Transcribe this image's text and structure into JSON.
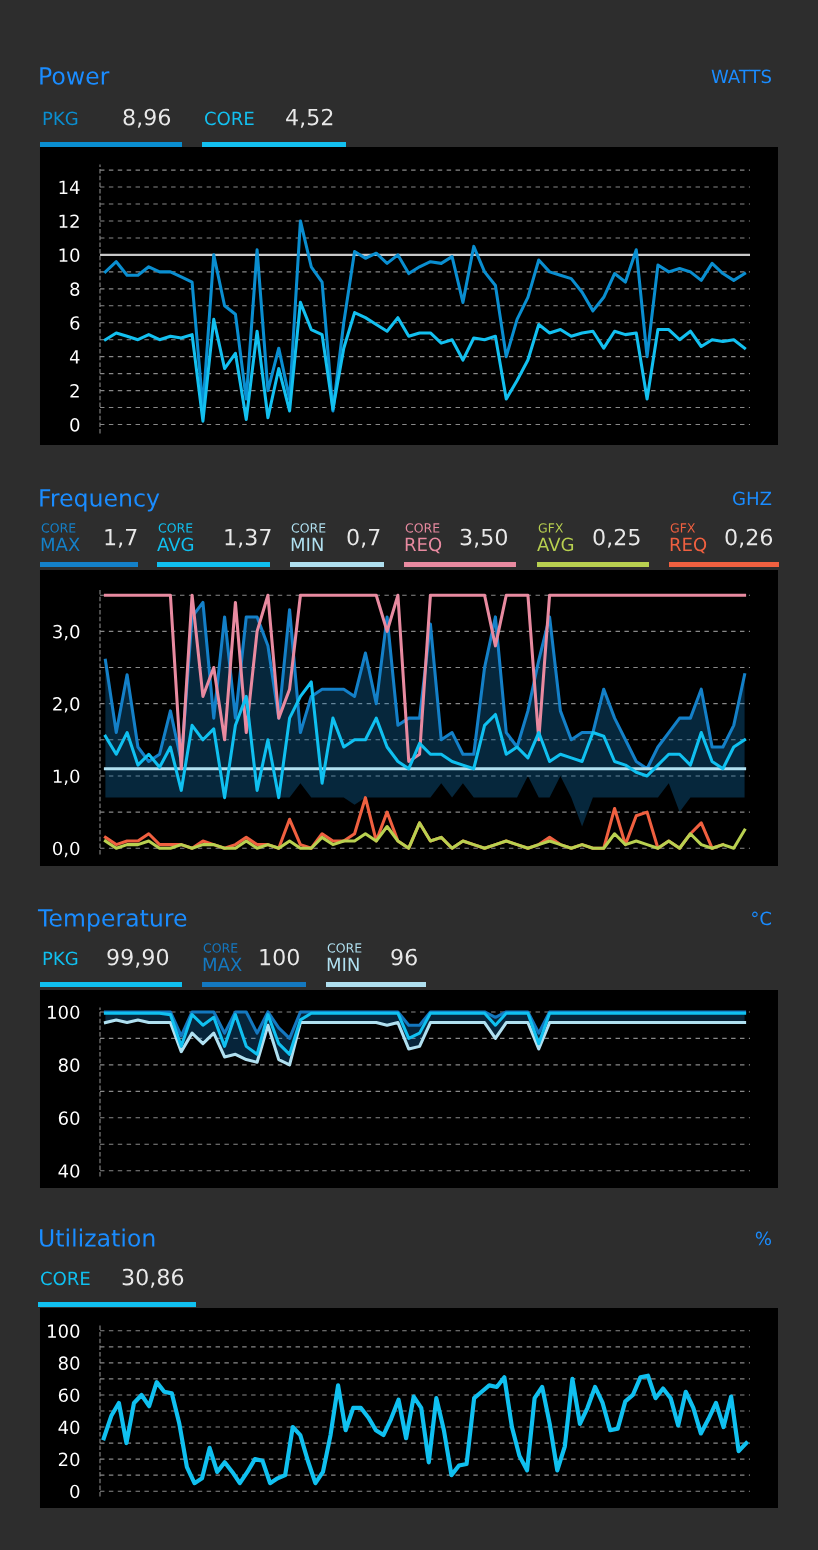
{
  "chart_data": [
    {
      "type": "line",
      "title": "Power",
      "subtitle": "WATTS",
      "annotations": [
        "8,96",
        "4,52"
      ],
      "categories": [
        null,
        null,
        null,
        null,
        null,
        null,
        null,
        null,
        null,
        null,
        null,
        null,
        null,
        null,
        null,
        null,
        null,
        null,
        null,
        null,
        null,
        null,
        null,
        null,
        null,
        null,
        null,
        null,
        null,
        null,
        null,
        null,
        null,
        null,
        null,
        null,
        null,
        null,
        null,
        null,
        null,
        null,
        null,
        null,
        null,
        null,
        null,
        null,
        null,
        null,
        null,
        null,
        null,
        null,
        null,
        null,
        null,
        null,
        null,
        null
      ],
      "series": [
        {
          "name": "PKG",
          "color": "#0a8ed0",
          "values": [
            9.0,
            9.6,
            8.8,
            8.8,
            9.3,
            9.0,
            9.0,
            8.7,
            8.4,
            1.0,
            10.0,
            7.0,
            6.5,
            1.5,
            10.3,
            2.0,
            4.5,
            1.5,
            12.0,
            9.3,
            8.4,
            0.8,
            6.0,
            10.2,
            9.8,
            10.1,
            9.5,
            10.0,
            8.9,
            9.3,
            9.6,
            9.5,
            9.9,
            7.2,
            10.5,
            9.0,
            8.2,
            4.0,
            6.2,
            7.5,
            9.7,
            9.0,
            8.8,
            8.6,
            7.8,
            6.7,
            7.5,
            8.9,
            8.4,
            10.3,
            4.0,
            9.4,
            9.0,
            9.2,
            9.0,
            8.5,
            9.5,
            8.9,
            8.5,
            8.9
          ]
        },
        {
          "name": "CORE",
          "color": "#13c0f0",
          "values": [
            5.0,
            5.4,
            5.2,
            5.0,
            5.3,
            5.0,
            5.2,
            5.1,
            5.3,
            0.2,
            6.2,
            3.3,
            4.2,
            0.3,
            5.5,
            0.4,
            3.3,
            0.8,
            7.2,
            5.6,
            5.3,
            0.9,
            4.5,
            6.6,
            6.3,
            5.9,
            5.5,
            6.3,
            5.2,
            5.4,
            5.4,
            4.8,
            5.0,
            3.8,
            5.1,
            5.0,
            5.2,
            1.5,
            2.6,
            3.8,
            5.9,
            5.4,
            5.6,
            5.2,
            5.4,
            5.5,
            4.5,
            5.5,
            5.3,
            5.4,
            1.5,
            5.6,
            5.6,
            5.0,
            5.5,
            4.6,
            5.0,
            4.9,
            5.0,
            4.5
          ]
        }
      ],
      "ylim": [
        -0.5,
        15.3
      ],
      "yticks": [
        0,
        {
          "value": 1,
          "label": null
        },
        2,
        {
          "value": 3,
          "label": null
        },
        4,
        {
          "value": 5,
          "label": null
        },
        6,
        {
          "value": 7,
          "label": null
        },
        8,
        {
          "value": 9,
          "label": null
        },
        10,
        {
          "value": 11,
          "label": null
        },
        12,
        {
          "value": 13,
          "label": null
        },
        14,
        {
          "value": 15,
          "label": null
        }
      ],
      "ref_lines": [
        {
          "axis": "y",
          "value": 10,
          "color": "#c8c8c8"
        }
      ],
      "grid": "y",
      "tick_labels": "y",
      "line_style": "solid",
      "marker": "none",
      "legend": "top left"
    },
    {
      "type": "line",
      "title": "Frequency",
      "subtitle": "GHZ",
      "annotations": [
        "1,7",
        "1,37",
        "0,7",
        "3,50",
        "0,25",
        "0,26"
      ],
      "categories": [
        null,
        null,
        null,
        null,
        null,
        null,
        null,
        null,
        null,
        null,
        null,
        null,
        null,
        null,
        null,
        null,
        null,
        null,
        null,
        null,
        null,
        null,
        null,
        null,
        null,
        null,
        null,
        null,
        null,
        null,
        null,
        null,
        null,
        null,
        null,
        null,
        null,
        null,
        null,
        null,
        null,
        null,
        null,
        null,
        null,
        null,
        null,
        null,
        null,
        null,
        null,
        null,
        null,
        null,
        null,
        null,
        null,
        null,
        null,
        null
      ],
      "series": [
        {
          "name": "CORE MAX",
          "color": "#1480c8",
          "values": [
            2.6,
            1.6,
            2.4,
            1.4,
            1.2,
            1.3,
            1.9,
            1.2,
            3.2,
            3.4,
            1.8,
            3.2,
            1.8,
            3.2,
            3.2,
            2.8,
            1.8,
            3.3,
            1.6,
            2.1,
            2.2,
            2.2,
            2.2,
            2.1,
            2.7,
            2.0,
            3.2,
            1.7,
            1.8,
            1.8,
            3.1,
            1.5,
            1.6,
            1.3,
            1.3,
            2.5,
            3.2,
            1.6,
            1.4,
            1.9,
            2.6,
            3.2,
            1.9,
            1.5,
            1.6,
            1.6,
            2.2,
            1.8,
            1.5,
            1.2,
            1.1,
            1.4,
            1.6,
            1.8,
            1.8,
            2.2,
            1.4,
            1.4,
            1.7,
            2.4
          ],
          "upper": [
            2.6,
            1.6,
            2.4,
            1.4,
            1.2,
            1.3,
            1.9,
            1.2,
            3.2,
            3.4,
            1.8,
            3.2,
            1.8,
            3.2,
            3.2,
            2.8,
            1.8,
            3.3,
            1.6,
            2.1,
            2.2,
            2.2,
            2.2,
            2.1,
            2.7,
            2.0,
            3.2,
            1.7,
            1.8,
            1.8,
            3.1,
            1.5,
            1.6,
            1.3,
            1.3,
            2.5,
            3.2,
            1.6,
            1.4,
            1.9,
            2.6,
            3.2,
            1.9,
            1.5,
            1.6,
            1.6,
            2.2,
            1.8,
            1.5,
            1.2,
            1.1,
            1.4,
            1.6,
            1.8,
            1.8,
            2.2,
            1.4,
            1.4,
            1.7,
            2.4
          ],
          "lower": [
            0.7,
            0.7,
            0.7,
            0.7,
            0.7,
            0.7,
            0.7,
            0.7,
            0.7,
            0.7,
            0.7,
            0.7,
            0.7,
            0.7,
            0.7,
            0.7,
            0.7,
            0.7,
            0.9,
            0.7,
            0.7,
            0.7,
            0.7,
            0.6,
            0.7,
            0.7,
            0.7,
            0.7,
            0.7,
            0.7,
            0.7,
            0.9,
            0.7,
            0.9,
            0.7,
            0.7,
            0.7,
            0.7,
            0.7,
            1.0,
            0.7,
            0.7,
            1.0,
            0.7,
            0.3,
            0.7,
            0.7,
            0.7,
            0.7,
            0.7,
            0.7,
            0.7,
            0.9,
            0.5,
            0.7,
            0.7,
            0.7,
            0.7,
            0.7,
            0.7
          ]
        },
        {
          "name": "CORE AVG",
          "color": "#10c0f0",
          "values": [
            1.55,
            1.3,
            1.6,
            1.15,
            1.3,
            1.12,
            1.4,
            0.8,
            1.7,
            1.5,
            1.65,
            0.7,
            1.7,
            2.1,
            0.8,
            1.5,
            0.7,
            1.8,
            2.1,
            2.3,
            0.9,
            1.8,
            1.4,
            1.5,
            1.5,
            1.8,
            1.4,
            1.2,
            1.1,
            1.45,
            1.3,
            1.3,
            1.2,
            1.15,
            1.1,
            1.7,
            1.85,
            1.3,
            1.4,
            1.25,
            1.6,
            1.2,
            1.3,
            1.25,
            1.2,
            1.6,
            1.55,
            1.2,
            1.15,
            1.05,
            1.0,
            1.15,
            1.3,
            1.3,
            1.15,
            1.6,
            1.2,
            1.1,
            1.4,
            1.5
          ]
        },
        {
          "name": "CORE MIN",
          "color": "#b0e0f0",
          "values": [
            1.1,
            1.1,
            1.1,
            1.1,
            1.1,
            1.1,
            1.1,
            1.1,
            1.1,
            1.1,
            1.1,
            1.1,
            1.1,
            1.1,
            1.1,
            1.1,
            1.1,
            1.1,
            1.1,
            1.1,
            1.1,
            1.1,
            1.1,
            1.1,
            1.1,
            1.1,
            1.1,
            1.1,
            1.1,
            1.1,
            1.1,
            1.1,
            1.1,
            1.1,
            1.1,
            1.1,
            1.1,
            1.1,
            1.1,
            1.1,
            1.1,
            1.1,
            1.1,
            1.1,
            1.1,
            1.1,
            1.1,
            1.1,
            1.1,
            1.1,
            1.1,
            1.1,
            1.1,
            1.1,
            1.1,
            1.1,
            1.1,
            1.1,
            1.1,
            1.1
          ]
        },
        {
          "name": "CORE REQ",
          "color": "#e88aa0",
          "values": [
            3.5,
            3.5,
            3.5,
            3.5,
            3.5,
            3.5,
            3.5,
            1.1,
            3.5,
            2.1,
            2.5,
            1.5,
            3.4,
            1.6,
            3.0,
            3.5,
            1.8,
            2.2,
            3.5,
            3.5,
            3.5,
            3.5,
            3.5,
            3.5,
            3.5,
            3.5,
            3.0,
            3.5,
            1.2,
            1.3,
            3.5,
            3.5,
            3.5,
            3.5,
            3.5,
            3.5,
            2.8,
            3.5,
            3.5,
            3.5,
            1.5,
            3.5,
            3.5,
            3.5,
            3.5,
            3.5,
            3.5,
            3.5,
            3.5,
            3.5,
            3.5,
            3.5,
            3.5,
            3.5,
            3.5,
            3.5,
            3.5,
            3.5,
            3.5,
            3.5
          ]
        },
        {
          "name": "GFX AVG",
          "color": "#b8d050",
          "values": [
            0.1,
            0.0,
            0.05,
            0.05,
            0.1,
            0.0,
            0.0,
            0.05,
            0.0,
            0.05,
            0.05,
            0.0,
            0.0,
            0.1,
            0.0,
            0.05,
            0.0,
            0.1,
            0.0,
            0.0,
            0.15,
            0.05,
            0.1,
            0.1,
            0.2,
            0.1,
            0.3,
            0.1,
            0.0,
            0.35,
            0.1,
            0.15,
            0.0,
            0.1,
            0.05,
            0.0,
            0.05,
            0.1,
            0.05,
            0.0,
            0.05,
            0.1,
            0.05,
            0.0,
            0.05,
            0.0,
            0.0,
            0.2,
            0.05,
            0.1,
            0.05,
            0.0,
            0.1,
            0.0,
            0.2,
            0.05,
            0.0,
            0.05,
            0.0,
            0.25
          ]
        },
        {
          "name": "GFX REQ",
          "color": "#f06040",
          "values": [
            0.15,
            0.05,
            0.1,
            0.1,
            0.2,
            0.05,
            0.05,
            0.05,
            0.0,
            0.1,
            0.05,
            0.0,
            0.05,
            0.15,
            0.05,
            0.05,
            0.0,
            0.4,
            0.05,
            0.0,
            0.2,
            0.1,
            0.1,
            0.2,
            0.7,
            0.1,
            0.5,
            0.1,
            0.0,
            0.35,
            0.1,
            0.15,
            0.0,
            0.1,
            0.05,
            0.0,
            0.05,
            0.1,
            0.05,
            0.0,
            0.05,
            0.15,
            0.05,
            0.0,
            0.05,
            0.0,
            0.0,
            0.55,
            0.05,
            0.45,
            0.5,
            0.0,
            0.1,
            0.0,
            0.2,
            0.35,
            0.0,
            0.05,
            null,
            null
          ]
        }
      ],
      "ylim": [
        -0.08,
        3.6
      ],
      "yticks": [
        {
          "value": 0,
          "label": "0,0"
        },
        {
          "value": 0.5,
          "label": null
        },
        {
          "value": 1,
          "label": "1,0"
        },
        {
          "value": 1.5,
          "label": null
        },
        {
          "value": 2,
          "label": "2,0"
        },
        {
          "value": 2.5,
          "label": null
        },
        {
          "value": 3,
          "label": "3,0"
        },
        {
          "value": 3.5,
          "label": null
        }
      ],
      "grid": "y",
      "tick_labels": "y",
      "line_style": "solid",
      "marker": "none",
      "legend": "top left"
    },
    {
      "type": "line",
      "title": "Temperature",
      "subtitle": "°C",
      "annotations": [
        "99,90",
        "100",
        "96"
      ],
      "categories": [
        null,
        null,
        null,
        null,
        null,
        null,
        null,
        null,
        null,
        null,
        null,
        null,
        null,
        null,
        null,
        null,
        null,
        null,
        null,
        null,
        null,
        null,
        null,
        null,
        null,
        null,
        null,
        null,
        null,
        null,
        null,
        null,
        null,
        null,
        null,
        null,
        null,
        null,
        null,
        null,
        null,
        null,
        null,
        null,
        null,
        null,
        null,
        null,
        null,
        null,
        null,
        null,
        null,
        null,
        null,
        null,
        null,
        null,
        null,
        null
      ],
      "series": [
        {
          "name": "PKG",
          "color": "#10c0f0",
          "values": [
            99.5,
            99.5,
            99.5,
            99.5,
            99.5,
            99.5,
            99,
            87,
            99,
            95,
            98,
            87,
            99,
            87,
            84,
            99,
            88,
            84,
            97,
            99.5,
            99.5,
            99.5,
            99.5,
            99.5,
            99.5,
            99.5,
            99.5,
            99.5,
            90,
            92,
            99.5,
            99.5,
            99.5,
            99.5,
            99.5,
            99.5,
            95,
            99.5,
            99.5,
            99.5,
            88,
            99.5,
            99.5,
            99.5,
            99.5,
            99.5,
            99.5,
            99.5,
            99.5,
            99.5,
            99.5,
            99.5,
            99.5,
            99.5,
            99.5,
            99.5,
            99.5,
            99.5,
            99.5,
            99.5
          ]
        },
        {
          "name": "CORE MAX",
          "color": "#1478c0",
          "values": [
            100,
            100,
            100,
            100,
            100,
            100,
            100,
            91,
            100,
            100,
            100,
            92,
            100,
            100,
            92,
            100,
            94,
            90,
            100,
            100,
            100,
            100,
            100,
            100,
            100,
            100,
            100,
            100,
            95,
            95,
            100,
            100,
            100,
            100,
            100,
            100,
            98,
            100,
            100,
            100,
            92,
            100,
            100,
            100,
            100,
            100,
            100,
            100,
            100,
            100,
            100,
            100,
            100,
            100,
            100,
            100,
            100,
            100,
            100,
            100
          ],
          "upper": [
            100,
            100,
            100,
            100,
            100,
            100,
            100,
            91,
            100,
            100,
            100,
            92,
            100,
            100,
            92,
            100,
            94,
            90,
            100,
            100,
            100,
            100,
            100,
            100,
            100,
            100,
            100,
            100,
            95,
            95,
            100,
            100,
            100,
            100,
            100,
            100,
            98,
            100,
            100,
            100,
            92,
            100,
            100,
            100,
            100,
            100,
            100,
            100,
            100,
            100,
            100,
            100,
            100,
            100,
            100,
            100,
            100,
            100,
            100,
            100
          ],
          "lower": [
            96,
            97,
            96,
            97,
            96,
            96,
            96,
            85,
            92,
            88,
            92,
            83,
            84,
            82,
            81,
            95,
            82,
            80,
            96,
            96,
            96,
            96,
            96,
            96,
            96,
            96,
            95,
            96,
            86,
            87,
            96,
            96,
            96,
            96,
            96,
            96,
            90,
            96,
            96,
            96,
            86,
            96,
            96,
            96,
            96,
            96,
            96,
            96,
            96,
            96,
            96,
            96,
            96,
            96,
            96,
            96,
            96,
            96,
            96,
            96
          ]
        },
        {
          "name": "CORE MIN",
          "color": "#b0e0f0",
          "values": [
            96,
            97,
            96,
            97,
            96,
            96,
            96,
            85,
            92,
            88,
            92,
            83,
            84,
            82,
            81,
            95,
            82,
            80,
            96,
            96,
            96,
            96,
            96,
            96,
            96,
            96,
            95,
            96,
            86,
            87,
            96,
            96,
            96,
            96,
            96,
            96,
            90,
            96,
            96,
            96,
            86,
            96,
            96,
            96,
            96,
            96,
            96,
            96,
            96,
            96,
            96,
            96,
            96,
            96,
            96,
            96,
            96,
            96,
            96,
            96
          ]
        }
      ],
      "ylim": [
        38,
        101.5
      ],
      "yticks": [
        40,
        {
          "value": 50,
          "label": null
        },
        60,
        {
          "value": 70,
          "label": null
        },
        80,
        {
          "value": 90,
          "label": null
        },
        100
      ],
      "grid": "y",
      "tick_labels": "y",
      "line_style": "solid",
      "marker": "none",
      "legend": "top left"
    },
    {
      "type": "line",
      "title": "Utilization",
      "subtitle": "%",
      "annotations": [
        "30,86"
      ],
      "categories": [
        null,
        null,
        null,
        null,
        null,
        null,
        null,
        null,
        null,
        null,
        null,
        null,
        null,
        null,
        null,
        null,
        null,
        null,
        null,
        null,
        null,
        null,
        null,
        null,
        null,
        null,
        null,
        null,
        null,
        null,
        null,
        null,
        null,
        null,
        null,
        null,
        null,
        null,
        null,
        null,
        null,
        null,
        null,
        null,
        null,
        null,
        null,
        null,
        null,
        null,
        null,
        null,
        null,
        null,
        null,
        null,
        null,
        null,
        null,
        null,
        null,
        null,
        null,
        null,
        null,
        null,
        null,
        null,
        null,
        null,
        null,
        null,
        null,
        null,
        null,
        null,
        null,
        null,
        null,
        null,
        null,
        null,
        null,
        null,
        null,
        null
      ],
      "series": [
        {
          "name": "CORE",
          "color": "#10c0f0",
          "values": [
            33,
            47,
            55,
            30,
            55,
            60,
            53,
            68,
            62,
            61,
            42,
            15,
            5,
            8,
            27,
            12,
            18,
            12,
            5,
            12,
            20,
            19,
            5,
            8,
            10,
            40,
            35,
            19,
            5,
            12,
            35,
            66,
            38,
            52,
            52,
            46,
            38,
            35,
            45,
            57,
            33,
            59,
            52,
            18,
            58,
            38,
            10,
            16,
            17,
            58,
            62,
            66,
            65,
            71,
            40,
            22,
            13,
            58,
            65,
            42,
            13,
            28,
            70,
            42,
            52,
            65,
            55,
            38,
            39,
            56,
            60,
            71,
            72,
            58,
            64,
            58,
            41,
            62,
            52,
            36,
            45,
            55,
            40,
            59,
            25,
            30
          ]
        }
      ],
      "ylim": [
        -3,
        103
      ],
      "yticks": [
        0,
        {
          "value": 10,
          "label": null
        },
        20,
        {
          "value": 30,
          "label": null
        },
        40,
        {
          "value": 50,
          "label": null
        },
        60,
        {
          "value": 70,
          "label": null
        },
        80,
        {
          "value": 90,
          "label": null
        },
        100
      ],
      "grid": "y",
      "tick_labels": "y",
      "line_style": "solid",
      "marker": "none",
      "legend": "top left"
    }
  ]
}
